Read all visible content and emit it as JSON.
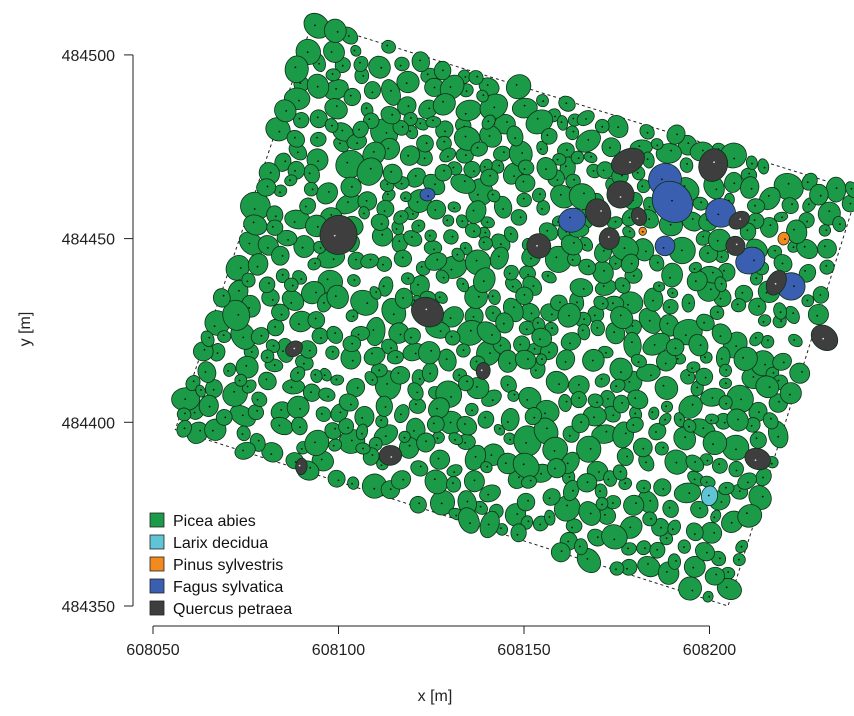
{
  "chart_data": {
    "type": "scatter",
    "title": "",
    "xlabel": "x [m]",
    "ylabel": "y [m]",
    "xlim": [
      608048,
      608240
    ],
    "ylim": [
      484346,
      484510
    ],
    "xticks": [
      608050,
      608100,
      608150,
      608200
    ],
    "yticks": [
      484350,
      484400,
      484450,
      484500
    ],
    "xtick_labels": [
      "608050",
      "608100",
      "608150",
      "608200"
    ],
    "ytick_labels": [
      "484350",
      "484400",
      "484450",
      "484500"
    ],
    "grid": false,
    "legend_position": "bottom-left",
    "plot_boundary": [
      [
        608093,
        484509
      ],
      [
        608240,
        484463
      ],
      [
        608205,
        484350
      ],
      [
        608056,
        484398
      ]
    ],
    "legend": [
      {
        "name": "Picea abies",
        "color": "#1b9a47"
      },
      {
        "name": "Larix decidua",
        "color": "#5ec4d6"
      },
      {
        "name": "Pinus sylvestris",
        "color": "#f28a1e"
      },
      {
        "name": "Fagus sylvatica",
        "color": "#3a5fb0"
      },
      {
        "name": "Quercus petraea",
        "color": "#3e3e3e"
      }
    ],
    "series": [
      {
        "name": "Larix decidua",
        "color": "#5ec4d6",
        "points": [
          {
            "x": 608200,
            "y": 484380,
            "r": 2.7
          }
        ]
      },
      {
        "name": "Pinus sylvestris",
        "color": "#f28a1e",
        "points": [
          {
            "x": 608182,
            "y": 484452,
            "r": 1.2
          },
          {
            "x": 608220,
            "y": 484450,
            "r": 1.6
          }
        ]
      },
      {
        "name": "Fagus sylvatica",
        "color": "#3a5fb0",
        "points": [
          {
            "x": 608124,
            "y": 484462,
            "r": 2.2
          },
          {
            "x": 608188,
            "y": 484466,
            "r": 5.2
          },
          {
            "x": 608190,
            "y": 484460,
            "r": 5.0
          },
          {
            "x": 608163,
            "y": 484455,
            "r": 3.5
          },
          {
            "x": 608203,
            "y": 484457,
            "r": 3.6
          },
          {
            "x": 608211,
            "y": 484444,
            "r": 4.0
          },
          {
            "x": 608188,
            "y": 484448,
            "r": 2.8
          },
          {
            "x": 608222,
            "y": 484437,
            "r": 3.6
          }
        ]
      },
      {
        "name": "Quercus petraea",
        "color": "#3e3e3e",
        "points": [
          {
            "x": 608100,
            "y": 484451,
            "r": 4.7
          },
          {
            "x": 608124,
            "y": 484430,
            "r": 4.0
          },
          {
            "x": 608088,
            "y": 484420,
            "r": 2.4
          },
          {
            "x": 608139,
            "y": 484414,
            "r": 2.1
          },
          {
            "x": 608114,
            "y": 484391,
            "r": 3.0
          },
          {
            "x": 608090,
            "y": 484388,
            "r": 2.0
          },
          {
            "x": 608178,
            "y": 484471,
            "r": 4.2
          },
          {
            "x": 608201,
            "y": 484470,
            "r": 4.0
          },
          {
            "x": 608176,
            "y": 484462,
            "r": 3.6
          },
          {
            "x": 608181,
            "y": 484456,
            "r": 2.4
          },
          {
            "x": 608170,
            "y": 484457,
            "r": 3.4
          },
          {
            "x": 608173,
            "y": 484450,
            "r": 3.2
          },
          {
            "x": 608154,
            "y": 484448,
            "r": 3.0
          },
          {
            "x": 608208,
            "y": 484455,
            "r": 2.8
          },
          {
            "x": 608207,
            "y": 484448,
            "r": 2.4
          },
          {
            "x": 608218,
            "y": 484438,
            "r": 3.0
          },
          {
            "x": 608231,
            "y": 484423,
            "r": 3.8
          },
          {
            "x": 608213,
            "y": 484390,
            "r": 3.6
          }
        ]
      },
      {
        "name": "Picea abies",
        "color": "#1b9a47",
        "points": []
      }
    ]
  }
}
